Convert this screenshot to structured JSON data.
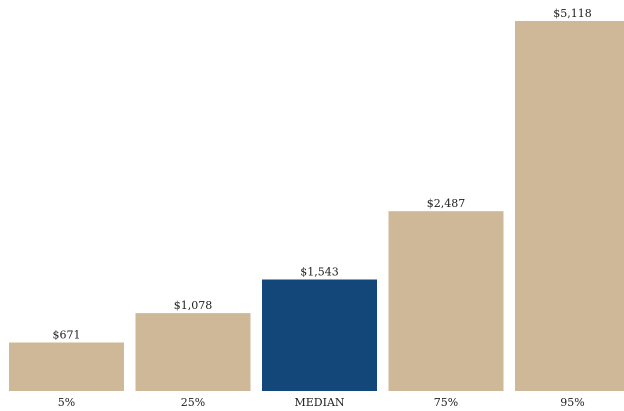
{
  "chart_data": {
    "type": "bar",
    "categories": [
      "5%",
      "25%",
      "MEDIAN",
      "75%",
      "95%"
    ],
    "values": [
      671,
      1078,
      1543,
      2487,
      5118
    ],
    "value_labels": [
      "$671",
      "$1,078",
      "$1,543",
      "$2,487",
      "$5,118"
    ],
    "ylim": [
      0,
      5118
    ],
    "grid": false,
    "highlight_category": "MEDIAN",
    "colors": {
      "bar": "#cfb898",
      "highlight": "#13477a"
    }
  }
}
